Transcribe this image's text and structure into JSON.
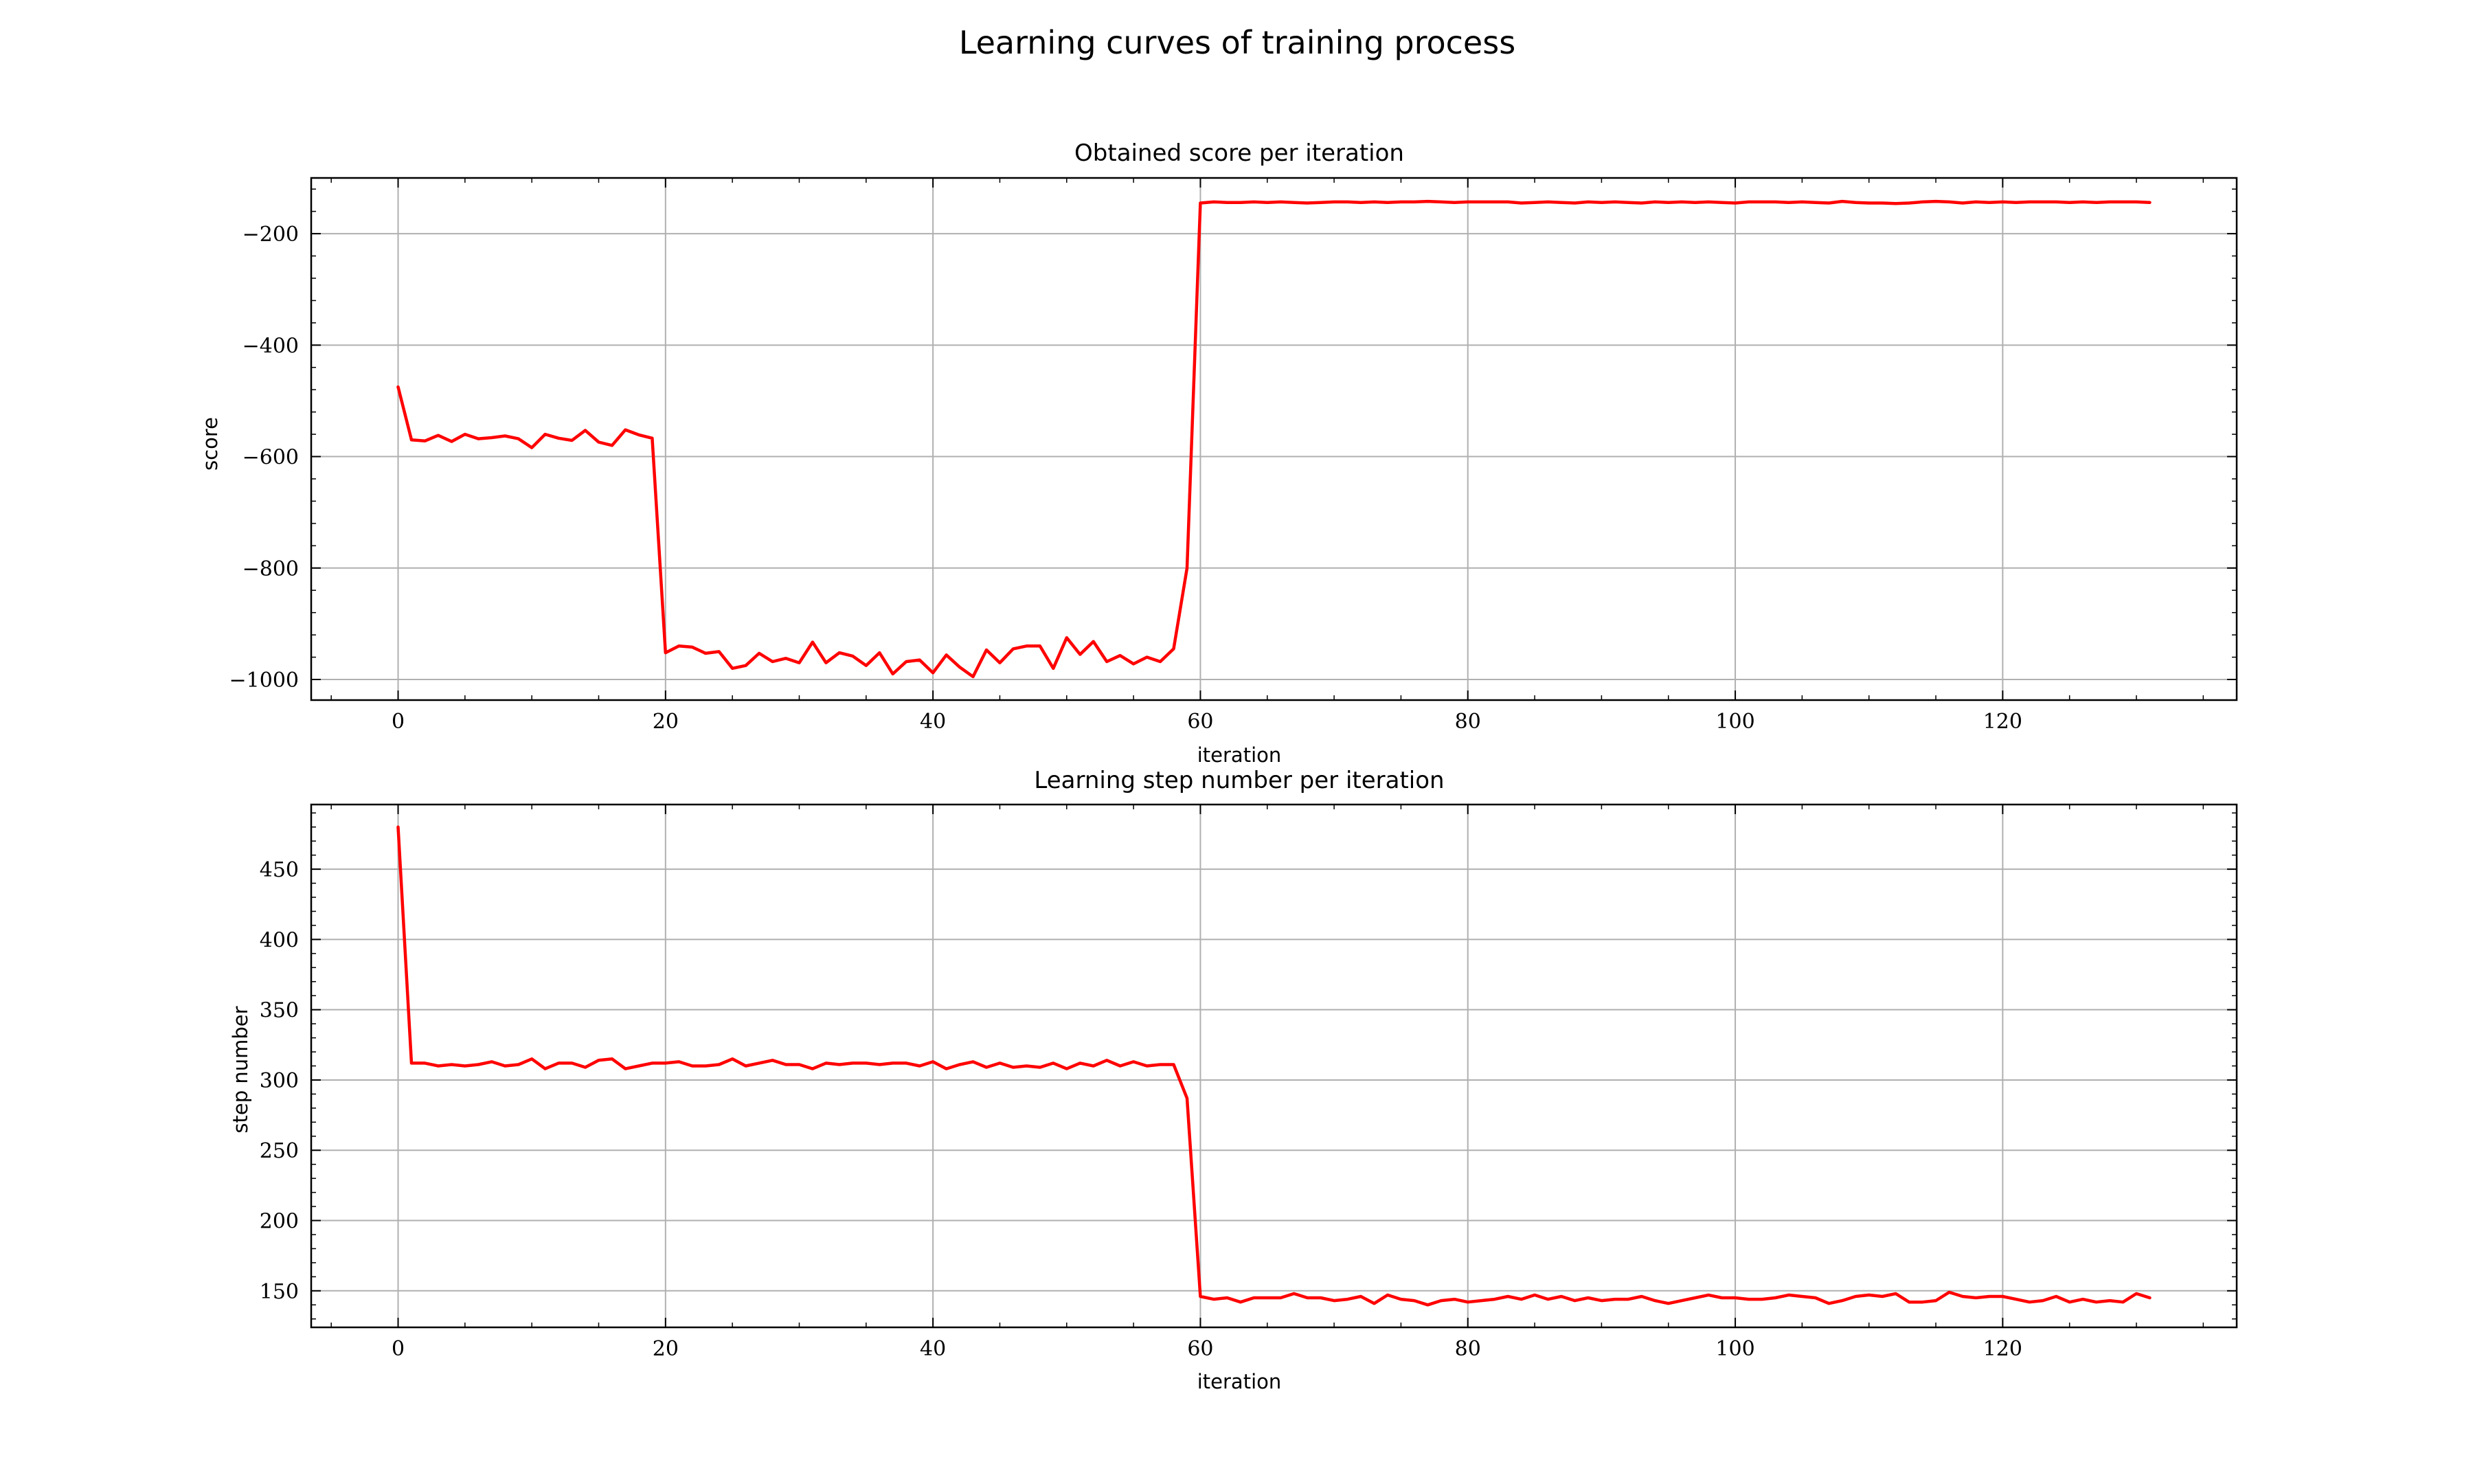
{
  "figure_title": "Learning curves of training process",
  "colors": {
    "line": "#ff0000",
    "grid": "#b0b0b0"
  },
  "chart_data": [
    {
      "type": "line",
      "title": "Obtained score per iteration",
      "xlabel": "iteration",
      "ylabel": "score",
      "xlim": [
        -6.5,
        137.5
      ],
      "ylim": [
        -1037,
        -100
      ],
      "xticks": [
        0,
        20,
        40,
        60,
        80,
        100,
        120
      ],
      "xtick_labels": [
        "0",
        "20",
        "40",
        "60",
        "80",
        "100",
        "120"
      ],
      "yticks": [
        -1000,
        -800,
        -600,
        -400,
        -200
      ],
      "ytick_labels": [
        "−1000",
        "−800",
        "−600",
        "−400",
        "−200"
      ],
      "grid": true,
      "series": [
        {
          "color": "#ff0000",
          "x": [
            0,
            1,
            2,
            3,
            4,
            5,
            6,
            7,
            8,
            9,
            10,
            11,
            12,
            13,
            14,
            15,
            16,
            17,
            18,
            19,
            20,
            21,
            22,
            23,
            24,
            25,
            26,
            27,
            28,
            29,
            30,
            31,
            32,
            33,
            34,
            35,
            36,
            37,
            38,
            39,
            40,
            41,
            42,
            43,
            44,
            45,
            46,
            47,
            48,
            49,
            50,
            51,
            52,
            53,
            54,
            55,
            56,
            57,
            58,
            59,
            60,
            61,
            62,
            63,
            64,
            65,
            66,
            67,
            68,
            69,
            70,
            71,
            72,
            73,
            74,
            75,
            76,
            77,
            78,
            79,
            80,
            81,
            82,
            83,
            84,
            85,
            86,
            87,
            88,
            89,
            90,
            91,
            92,
            93,
            94,
            95,
            96,
            97,
            98,
            99,
            100,
            101,
            102,
            103,
            104,
            105,
            106,
            107,
            108,
            109,
            110,
            111,
            112,
            113,
            114,
            115,
            116,
            117,
            118,
            119,
            120,
            121,
            122,
            123,
            124,
            125,
            126,
            127,
            128,
            129,
            130,
            131
          ],
          "y": [
            -475,
            -570,
            -572,
            -562,
            -573,
            -560,
            -568,
            -566,
            -563,
            -568,
            -584,
            -560,
            -567,
            -571,
            -553,
            -574,
            -580,
            -552,
            -561,
            -567,
            -952,
            -940,
            -942,
            -953,
            -950,
            -980,
            -975,
            -953,
            -968,
            -962,
            -970,
            -933,
            -970,
            -952,
            -958,
            -975,
            -952,
            -990,
            -968,
            -965,
            -988,
            -956,
            -978,
            -995,
            -947,
            -970,
            -945,
            -940,
            -940,
            -980,
            -925,
            -955,
            -932,
            -968,
            -957,
            -972,
            -960,
            -968,
            -945,
            -800,
            -145,
            -143,
            -144,
            -144,
            -143,
            -144,
            -143,
            -144,
            -145,
            -144,
            -143,
            -143,
            -144,
            -143,
            -144,
            -143,
            -143,
            -142,
            -143,
            -144,
            -143,
            -143,
            -143,
            -143,
            -145,
            -144,
            -143,
            -144,
            -145,
            -143,
            -144,
            -143,
            -144,
            -145,
            -143,
            -144,
            -143,
            -144,
            -143,
            -144,
            -145,
            -143,
            -143,
            -143,
            -144,
            -143,
            -144,
            -145,
            -142,
            -144,
            -145,
            -145,
            -146,
            -145,
            -143,
            -142,
            -143,
            -145,
            -143,
            -144,
            -143,
            -144,
            -143,
            -143,
            -143,
            -144,
            -143,
            -144,
            -143,
            -143,
            -143,
            -144
          ]
        }
      ]
    },
    {
      "type": "line",
      "title": "Learning step number per iteration",
      "xlabel": "iteration",
      "ylabel": "step number",
      "xlim": [
        -6.5,
        137.5
      ],
      "ylim": [
        124,
        496
      ],
      "xticks": [
        0,
        20,
        40,
        60,
        80,
        100,
        120
      ],
      "xtick_labels": [
        "0",
        "20",
        "40",
        "60",
        "80",
        "100",
        "120"
      ],
      "yticks": [
        150,
        200,
        250,
        300,
        350,
        400,
        450
      ],
      "ytick_labels": [
        "150",
        "200",
        "250",
        "300",
        "350",
        "400",
        "450"
      ],
      "grid": true,
      "series": [
        {
          "color": "#ff0000",
          "x": [
            0,
            1,
            2,
            3,
            4,
            5,
            6,
            7,
            8,
            9,
            10,
            11,
            12,
            13,
            14,
            15,
            16,
            17,
            18,
            19,
            20,
            21,
            22,
            23,
            24,
            25,
            26,
            27,
            28,
            29,
            30,
            31,
            32,
            33,
            34,
            35,
            36,
            37,
            38,
            39,
            40,
            41,
            42,
            43,
            44,
            45,
            46,
            47,
            48,
            49,
            50,
            51,
            52,
            53,
            54,
            55,
            56,
            57,
            58,
            59,
            60,
            61,
            62,
            63,
            64,
            65,
            66,
            67,
            68,
            69,
            70,
            71,
            72,
            73,
            74,
            75,
            76,
            77,
            78,
            79,
            80,
            81,
            82,
            83,
            84,
            85,
            86,
            87,
            88,
            89,
            90,
            91,
            92,
            93,
            94,
            95,
            96,
            97,
            98,
            99,
            100,
            101,
            102,
            103,
            104,
            105,
            106,
            107,
            108,
            109,
            110,
            111,
            112,
            113,
            114,
            115,
            116,
            117,
            118,
            119,
            120,
            121,
            122,
            123,
            124,
            125,
            126,
            127,
            128,
            129,
            130,
            131
          ],
          "y": [
            480,
            312,
            312,
            310,
            311,
            310,
            311,
            313,
            310,
            311,
            315,
            308,
            312,
            312,
            309,
            314,
            315,
            308,
            310,
            312,
            312,
            313,
            310,
            310,
            311,
            315,
            310,
            312,
            314,
            311,
            311,
            308,
            312,
            311,
            312,
            312,
            311,
            312,
            312,
            310,
            313,
            308,
            311,
            313,
            309,
            312,
            309,
            310,
            309,
            312,
            308,
            312,
            310,
            314,
            310,
            313,
            310,
            311,
            311,
            287,
            146,
            144,
            145,
            142,
            145,
            145,
            145,
            148,
            145,
            145,
            143,
            144,
            146,
            141,
            147,
            144,
            143,
            140,
            143,
            144,
            142,
            143,
            144,
            146,
            144,
            147,
            144,
            146,
            143,
            145,
            143,
            144,
            144,
            146,
            143,
            141,
            143,
            145,
            147,
            145,
            145,
            144,
            144,
            145,
            147,
            146,
            145,
            141,
            143,
            146,
            147,
            146,
            148,
            142,
            142,
            143,
            149,
            146,
            145,
            146,
            146,
            144,
            142,
            143,
            146,
            142,
            144,
            142,
            143,
            142,
            148,
            145
          ]
        }
      ]
    }
  ]
}
